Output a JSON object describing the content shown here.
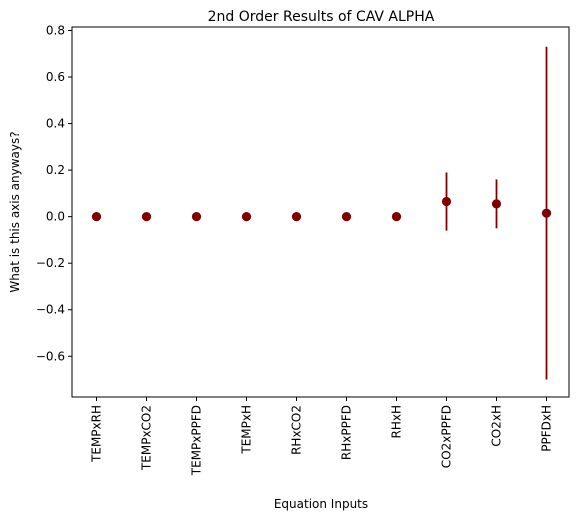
{
  "chart_data": {
    "type": "scatter",
    "title": "2nd Order Results of CAV ALPHA",
    "xlabel": "Equation Inputs",
    "ylabel": "What is this axis anyways?",
    "categories": [
      "TEMPxRH",
      "TEMPxCO2",
      "TEMPxPPFD",
      "TEMPxH",
      "RHxCO2",
      "RHxPPFD",
      "RHxH",
      "CO2xPPFD",
      "CO2xH",
      "PPFDxH"
    ],
    "values": [
      0.0,
      0.0,
      0.0,
      0.0,
      0.0,
      0.0,
      0.0,
      0.065,
      0.055,
      0.015
    ],
    "error": [
      0.0,
      0.0,
      0.0,
      0.0,
      0.0,
      0.0,
      0.0,
      0.125,
      0.105,
      0.715
    ],
    "ylim": [
      -0.775,
      0.815
    ],
    "yticks": [
      "0.8",
      "0.6",
      "0.4",
      "0.2",
      "0.0",
      "−0.2",
      "−0.4",
      "−0.6"
    ],
    "ytick_values": [
      0.8,
      0.6,
      0.4,
      0.2,
      0.0,
      -0.2,
      -0.4,
      -0.6
    ],
    "grid": false,
    "marker_color": "#800000"
  }
}
